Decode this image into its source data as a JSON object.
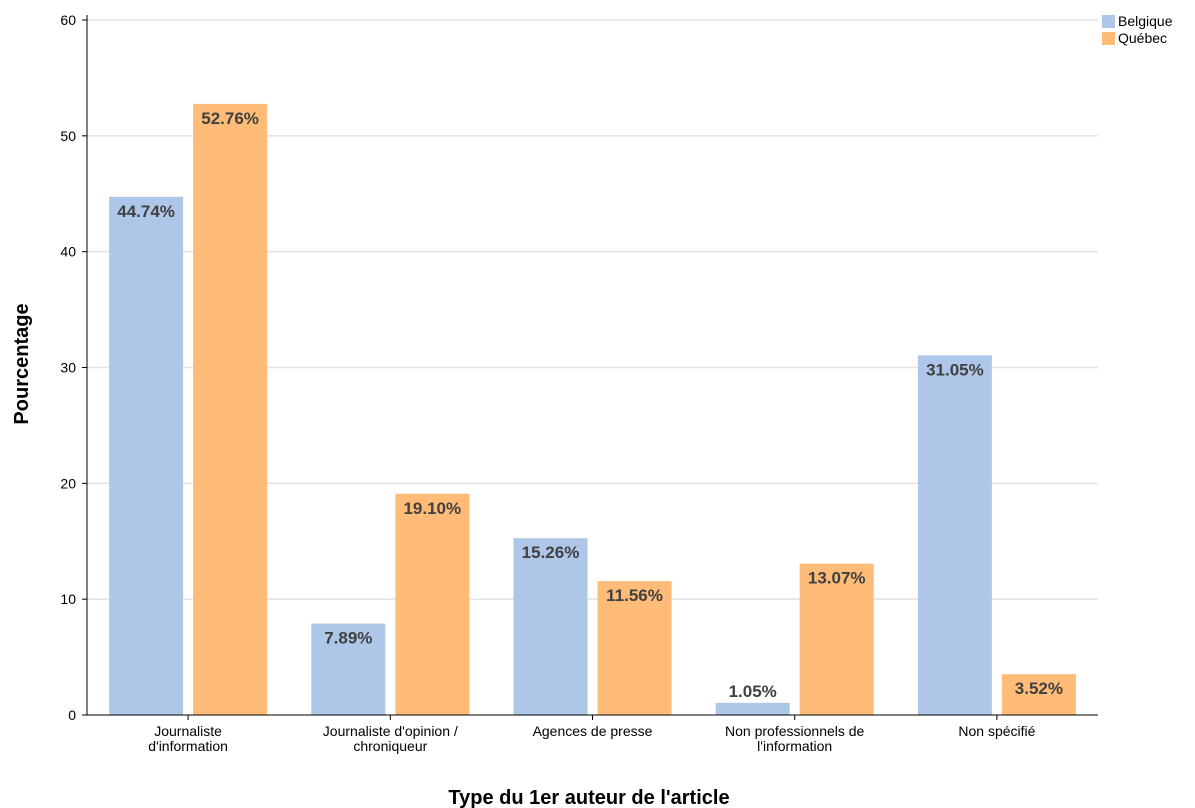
{
  "chart_data": {
    "type": "bar",
    "title": "",
    "xlabel": "Type du 1er auteur de l'article",
    "ylabel": "Pourcentage",
    "ylim": [
      0,
      60
    ],
    "yticks": [
      0,
      10,
      20,
      30,
      40,
      50,
      60
    ],
    "grid": true,
    "legend_position": "top-right",
    "categories": [
      [
        "Journaliste",
        "d'information"
      ],
      [
        "Journaliste d'opinion /",
        "chroniqueur"
      ],
      [
        "Agences de presse"
      ],
      [
        "Non professionnels de",
        "l'information"
      ],
      [
        "Non spécifié"
      ]
    ],
    "series": [
      {
        "name": "Belgique",
        "color": "#aec7e8",
        "values": [
          44.74,
          7.89,
          15.26,
          1.05,
          31.05
        ],
        "labels": [
          "44.74%",
          "7.89%",
          "15.26%",
          "1.05%",
          "31.05%"
        ]
      },
      {
        "name": "Québec",
        "color": "#ffbb78",
        "values": [
          52.76,
          19.1,
          11.56,
          13.07,
          3.52
        ],
        "labels": [
          "52.76%",
          "19.10%",
          "11.56%",
          "13.07%",
          "3.52%"
        ]
      }
    ]
  }
}
